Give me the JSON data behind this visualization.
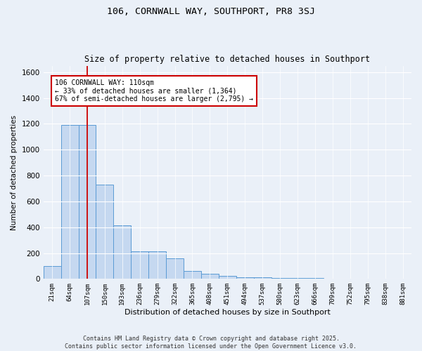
{
  "title1": "106, CORNWALL WAY, SOUTHPORT, PR8 3SJ",
  "title2": "Size of property relative to detached houses in Southport",
  "xlabel": "Distribution of detached houses by size in Southport",
  "ylabel": "Number of detached properties",
  "bar_labels": [
    "21sqm",
    "64sqm",
    "107sqm",
    "150sqm",
    "193sqm",
    "236sqm",
    "279sqm",
    "322sqm",
    "365sqm",
    "408sqm",
    "451sqm",
    "494sqm",
    "537sqm",
    "580sqm",
    "623sqm",
    "666sqm",
    "709sqm",
    "752sqm",
    "795sqm",
    "838sqm",
    "881sqm"
  ],
  "bar_heights": [
    100,
    1190,
    1190,
    730,
    415,
    215,
    215,
    160,
    60,
    40,
    25,
    15,
    10,
    8,
    5,
    5,
    3,
    2,
    2,
    2,
    2
  ],
  "bar_color": "#c5d8f0",
  "bar_edge_color": "#5b9bd5",
  "vline_x": 2,
  "vline_color": "#cc0000",
  "annotation_text": "106 CORNWALL WAY: 110sqm\n← 33% of detached houses are smaller (1,364)\n67% of semi-detached houses are larger (2,795) →",
  "annotation_box_color": "#ffffff",
  "annotation_box_edge": "#cc0000",
  "ylim": [
    0,
    1650
  ],
  "yticks": [
    0,
    200,
    400,
    600,
    800,
    1000,
    1200,
    1400,
    1600
  ],
  "footer1": "Contains HM Land Registry data © Crown copyright and database right 2025.",
  "footer2": "Contains public sector information licensed under the Open Government Licence v3.0.",
  "bg_color": "#eaf0f8"
}
